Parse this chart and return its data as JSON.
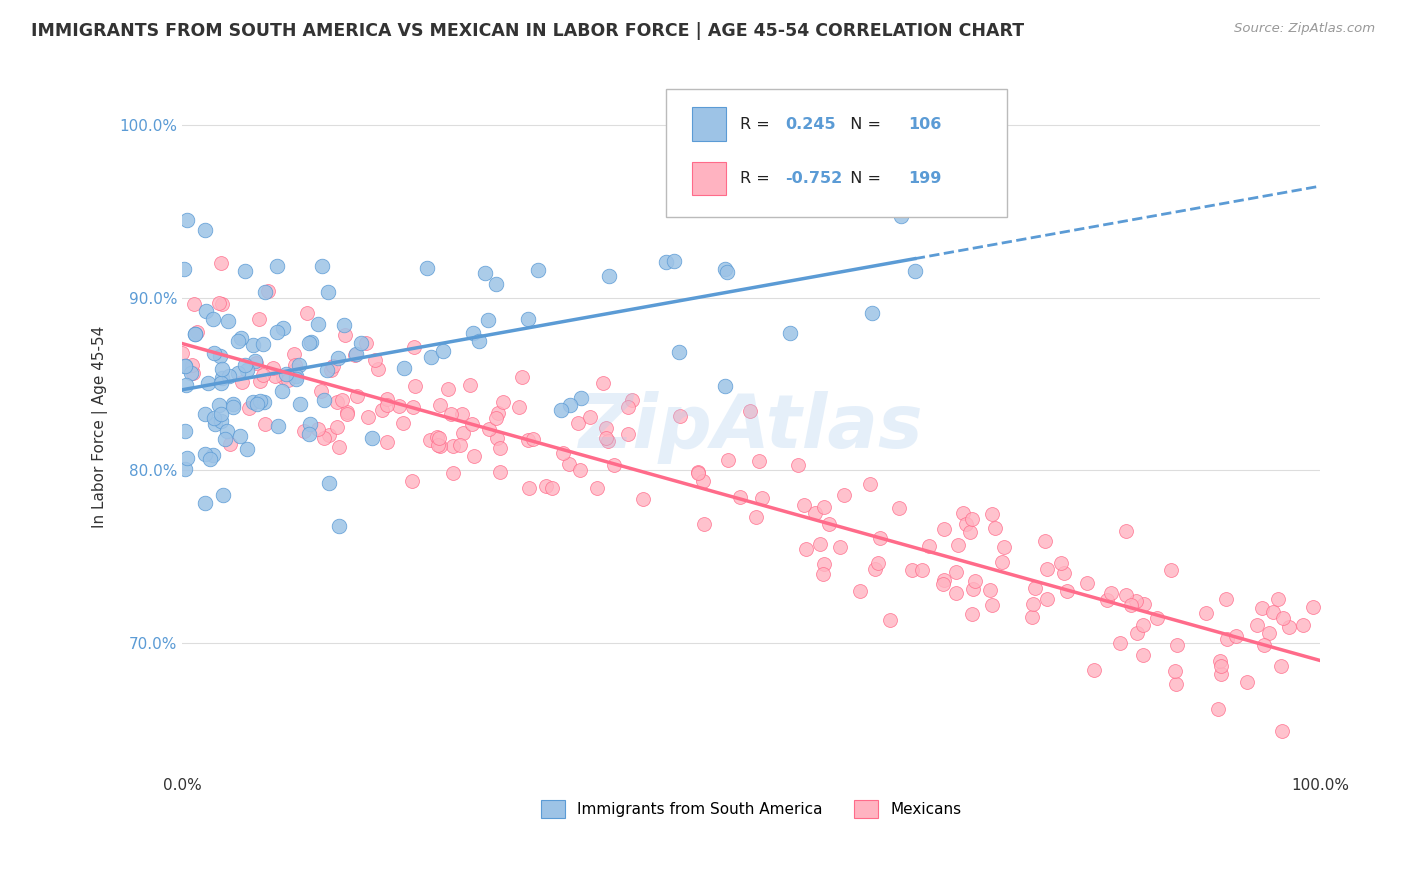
{
  "title": "IMMIGRANTS FROM SOUTH AMERICA VS MEXICAN IN LABOR FORCE | AGE 45-54 CORRELATION CHART",
  "source": "Source: ZipAtlas.com",
  "ylabel": "In Labor Force | Age 45-54",
  "ytick_labels": [
    "70.0%",
    "80.0%",
    "90.0%",
    "100.0%"
  ],
  "ytick_values": [
    0.7,
    0.8,
    0.9,
    1.0
  ],
  "xlim": [
    0.0,
    1.0
  ],
  "ylim": [
    0.625,
    1.025
  ],
  "blue_R": "0.245",
  "blue_N": "106",
  "pink_R": "-0.752",
  "pink_N": "199",
  "blue_color": "#5B9BD5",
  "blue_fill": "#9DC3E6",
  "pink_color": "#FF6B8A",
  "pink_fill": "#FFB3C1",
  "watermark": "ZipAtlas",
  "legend_label_blue": "Immigrants from South America",
  "legend_label_pink": "Mexicans",
  "text_color": "#333333",
  "source_color": "#999999",
  "grid_color": "#DDDDDD"
}
